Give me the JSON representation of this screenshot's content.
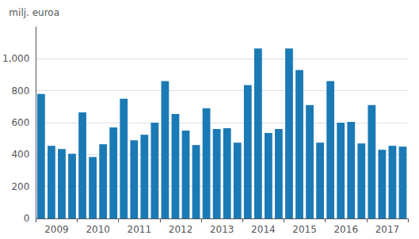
{
  "chart_data": {
    "type": "bar",
    "y_label": "milj. euroa",
    "categories": [
      null,
      "2009",
      null,
      null,
      null,
      "2010",
      null,
      null,
      null,
      "2011",
      null,
      null,
      null,
      "2012",
      null,
      null,
      null,
      "2013",
      null,
      null,
      null,
      "2014",
      null,
      null,
      null,
      "2015",
      null,
      null,
      null,
      "2016",
      null,
      null,
      null,
      "2017",
      null,
      null
    ],
    "values": [
      780,
      455,
      435,
      405,
      665,
      385,
      465,
      570,
      750,
      490,
      525,
      600,
      860,
      655,
      550,
      460,
      690,
      560,
      565,
      475,
      835,
      1065,
      535,
      560,
      1065,
      930,
      710,
      475,
      860,
      600,
      605,
      470,
      710,
      430,
      455,
      450
    ],
    "color": "#1a7ab5",
    "ylim": [
      0,
      1200
    ],
    "yticks": [
      0,
      200,
      400,
      600,
      800,
      1000
    ],
    "grid": true
  }
}
